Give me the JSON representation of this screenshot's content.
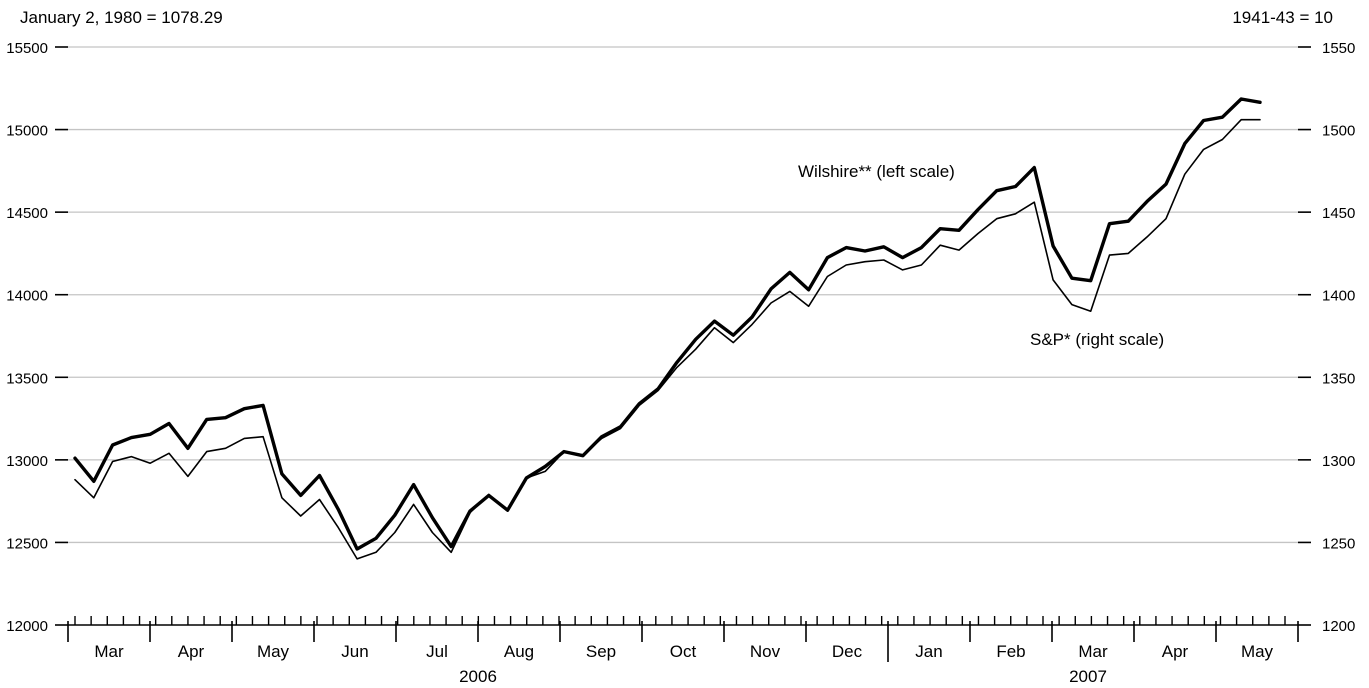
{
  "chart_data": {
    "type": "line",
    "notes": {
      "left": "January 2, 1980 = 1078.29",
      "right": "1941-43 = 10"
    },
    "y_left": {
      "ticks": [
        12000,
        12500,
        13000,
        13500,
        14000,
        14500,
        15000,
        15500
      ],
      "range": [
        12000,
        15500
      ]
    },
    "y_right": {
      "ticks": [
        1200,
        1250,
        1300,
        1350,
        1400,
        1450,
        1500,
        1550
      ],
      "range": [
        1200,
        1550
      ]
    },
    "months": [
      "Mar",
      "Apr",
      "May",
      "Jun",
      "Jul",
      "Aug",
      "Sep",
      "Oct",
      "Nov",
      "Dec",
      "Jan",
      "Feb",
      "Mar",
      "Apr",
      "May"
    ],
    "years": [
      "2006",
      "2007"
    ],
    "grid": true,
    "series": [
      {
        "name": "Wilshire** (left scale)",
        "axis": "left",
        "values": [
          13010,
          12870,
          13090,
          13135,
          13155,
          13220,
          13070,
          13245,
          13255,
          13310,
          13330,
          12915,
          12785,
          12905,
          12700,
          12460,
          12525,
          12665,
          12850,
          12650,
          12475,
          12690,
          12785,
          12695,
          12890,
          12960,
          13050,
          13025,
          13140,
          13200,
          13340,
          13430,
          13590,
          13730,
          13840,
          13755,
          13865,
          14035,
          14135,
          14030,
          14225,
          14285,
          14265,
          14290,
          14225,
          14285,
          14400,
          14390,
          14515,
          14630,
          14655,
          14770,
          14295,
          14100,
          14085,
          14430,
          14445,
          14565,
          14670,
          14915,
          15055,
          15075,
          15185,
          15165
        ]
      },
      {
        "name": "S&P* (right scale)",
        "axis": "right",
        "values": [
          1288,
          1277,
          1299,
          1302,
          1298,
          1304,
          1290,
          1305,
          1307,
          1313,
          1314,
          1277,
          1266,
          1276,
          1259,
          1240,
          1244,
          1256,
          1273,
          1256,
          1244,
          1268,
          1279,
          1269,
          1289,
          1293,
          1305,
          1303,
          1313,
          1319,
          1333,
          1342,
          1356,
          1367,
          1380,
          1371,
          1382,
          1395,
          1402,
          1393,
          1411,
          1418,
          1420,
          1421,
          1415,
          1418,
          1430,
          1427,
          1437,
          1446,
          1449,
          1456,
          1409,
          1394,
          1390,
          1424,
          1425,
          1435,
          1446,
          1473,
          1488,
          1494,
          1506,
          1506
        ]
      }
    ]
  }
}
